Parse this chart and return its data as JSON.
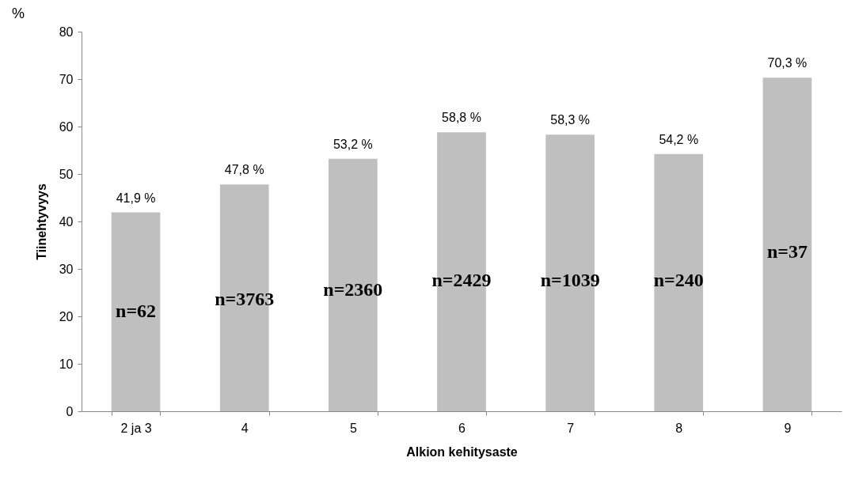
{
  "chart_data": {
    "type": "bar",
    "categories": [
      "2 ja 3",
      "4",
      "5",
      "6",
      "7",
      "8",
      "9"
    ],
    "values": [
      41.9,
      47.8,
      53.2,
      58.8,
      58.3,
      54.2,
      70.3
    ],
    "value_labels": [
      "41,9 %",
      "47,8 %",
      "53,2 %",
      "58,8 %",
      "58,3 %",
      "54,2 %",
      "70,3 %"
    ],
    "color": "#bfbfbf",
    "xlabel": "Alkion kehitysaste",
    "ylabel": "Tiinehtyvyys",
    "ylim": [
      0,
      80
    ],
    "yticks": [
      0,
      10,
      20,
      30,
      40,
      50,
      60,
      70,
      80
    ],
    "grid": false,
    "annotations": [
      "%",
      "n=62",
      "n=3763",
      "n=2360",
      "n=2429",
      "n=1039",
      "n=240",
      "n=37"
    ]
  }
}
